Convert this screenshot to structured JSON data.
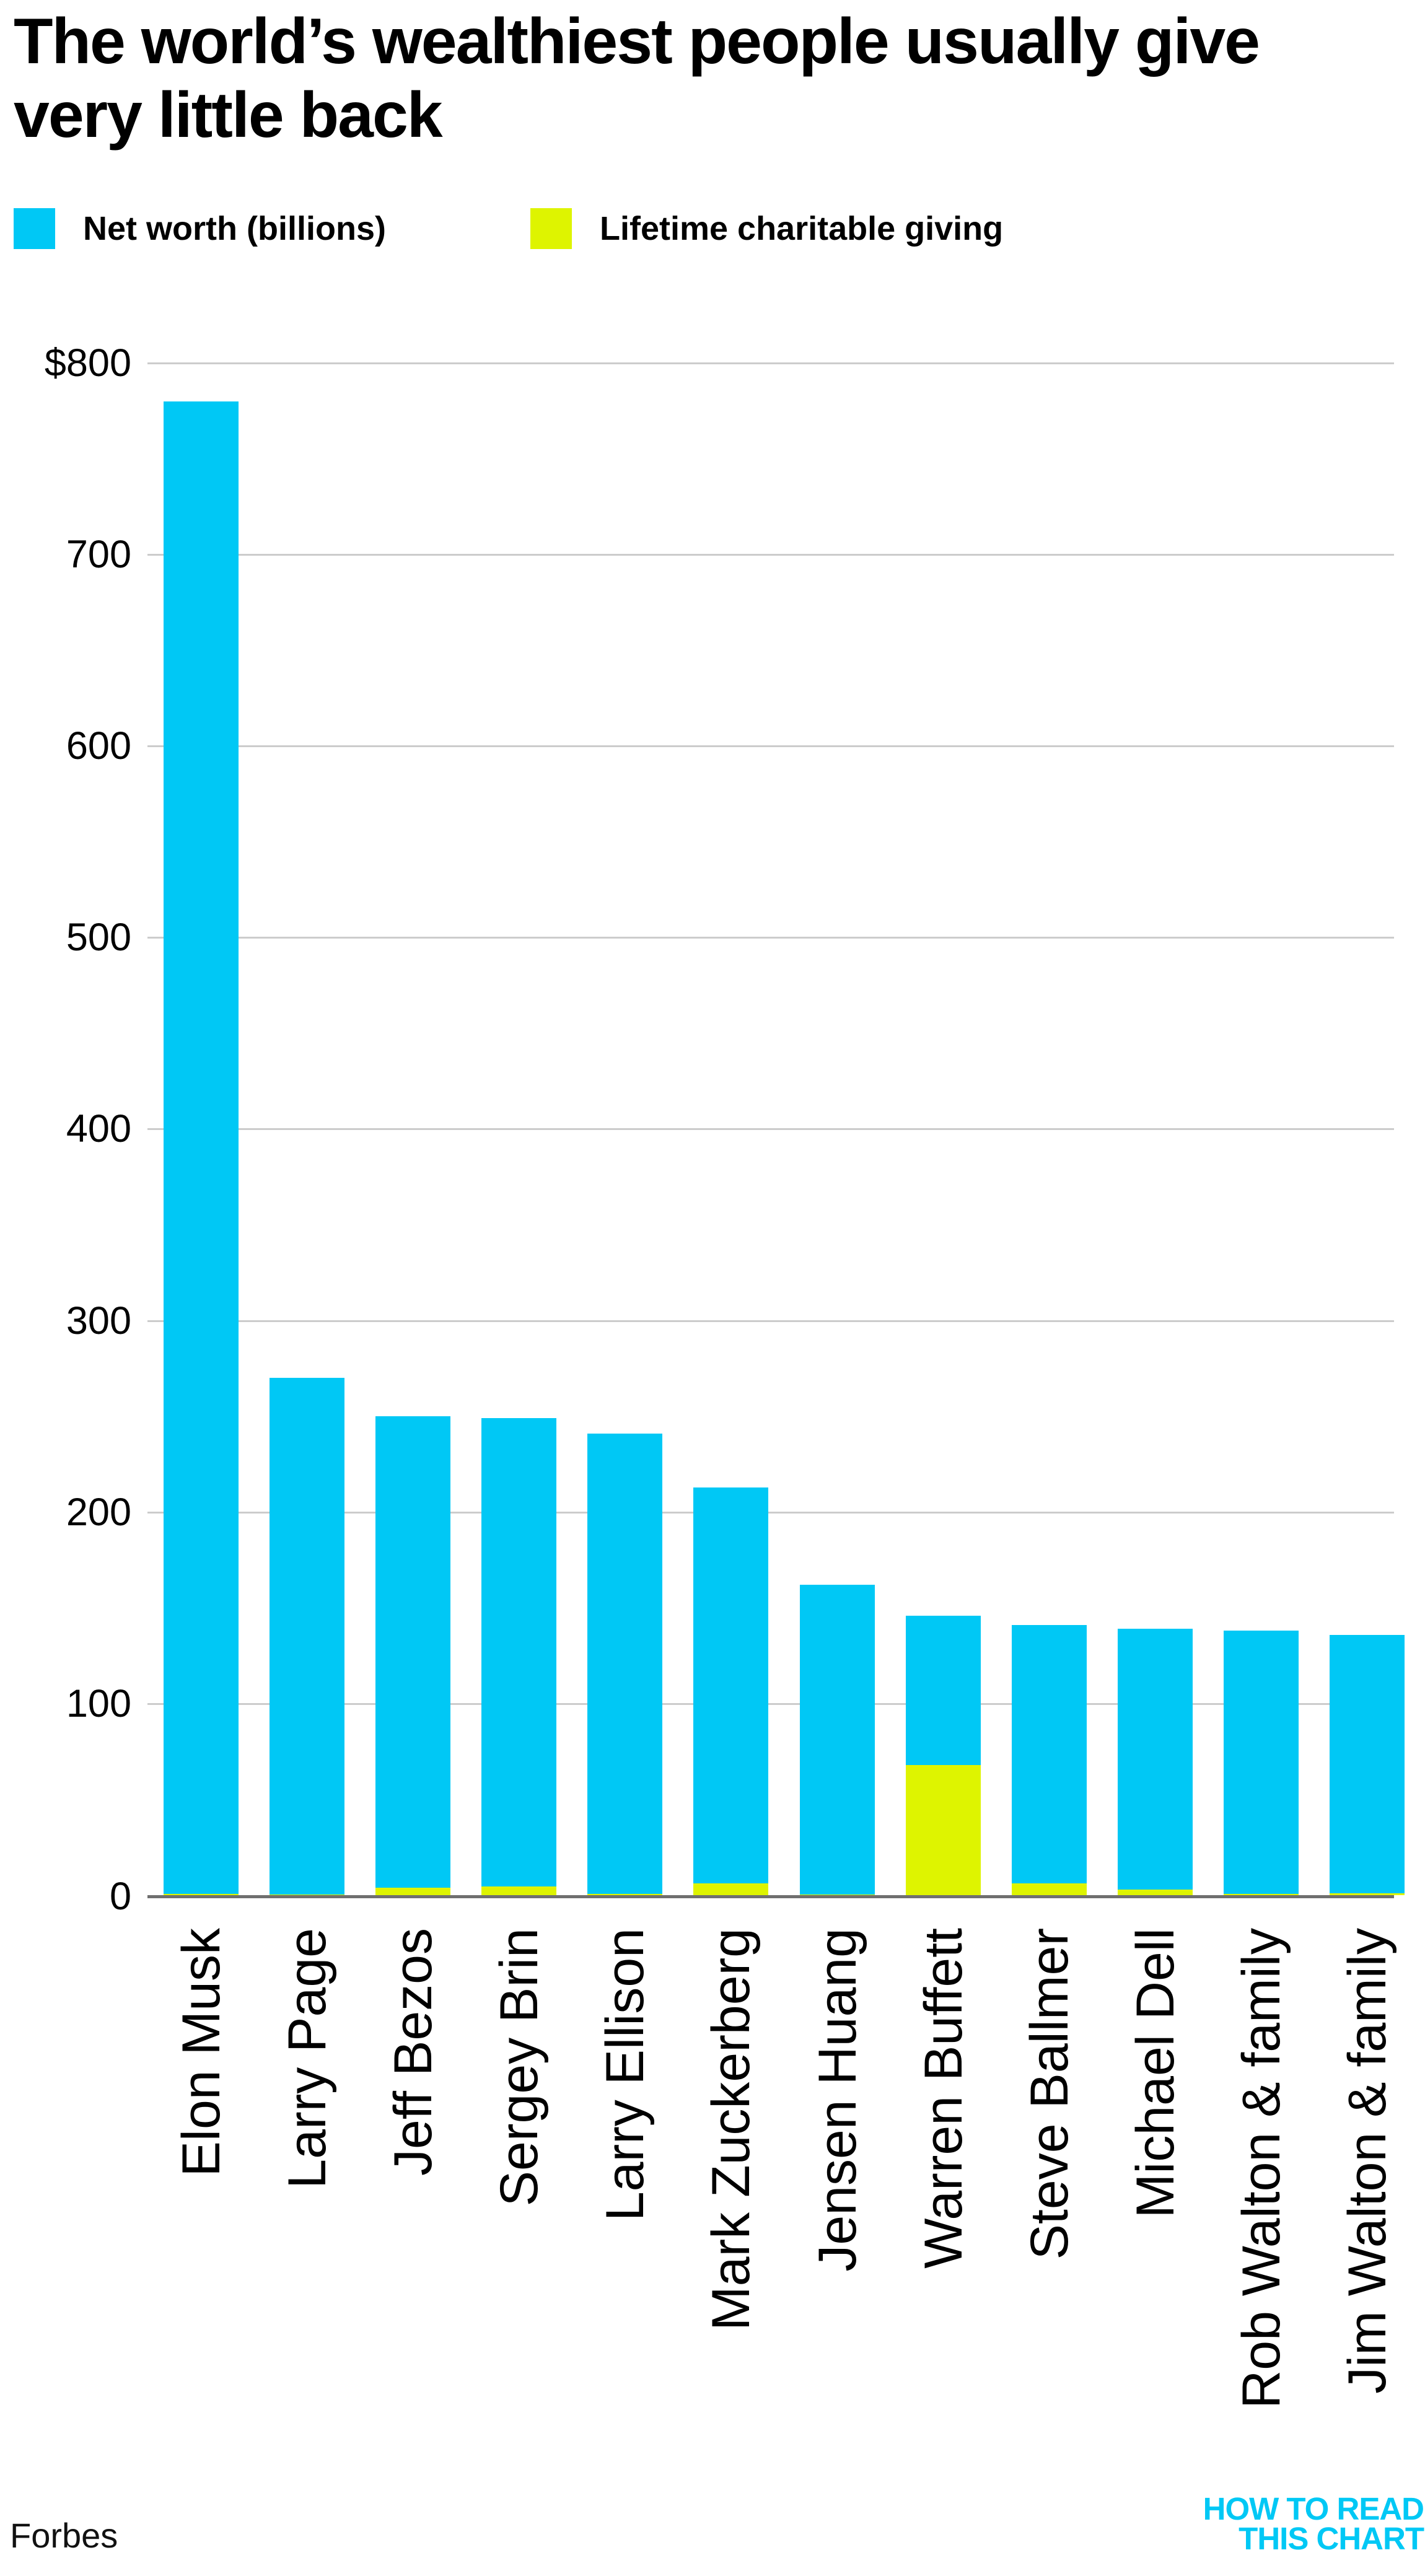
{
  "title": {
    "line1": "The world’s wealthiest people usually give",
    "line2": "very little back"
  },
  "legend": [
    {
      "label": "Net worth (billions)",
      "color": "#00c8f5"
    },
    {
      "label": "Lifetime charitable giving",
      "color": "#def400"
    }
  ],
  "source": "Forbes",
  "logo": {
    "line1": "HOW TO READ",
    "line2": "THIS CHART",
    "color": "#00c8f5"
  },
  "colors": {
    "net_worth": "#00c8f5",
    "giving": "#def400",
    "gridline": "#cccccc",
    "axis": "#6f6f6f",
    "text": "#000000"
  },
  "chart_data": {
    "type": "bar",
    "title": "The world’s wealthiest people usually give very little back",
    "categories": [
      "Elon Musk",
      "Larry Page",
      "Jeff Bezos",
      "Sergey Brin",
      "Larry Ellison",
      "Mark Zuckerberg",
      "Jensen Huang",
      "Warren Buffett",
      "Steve Ballmer",
      "Michael Dell",
      "Rob Walton & family",
      "Jim Walton & family"
    ],
    "series": [
      {
        "name": "Net worth (billions)",
        "color": "#00c8f5",
        "values": [
          780,
          270,
          250,
          249,
          241,
          213,
          162,
          146,
          141,
          139,
          138,
          136
        ]
      },
      {
        "name": "Lifetime charitable giving",
        "color": "#def400",
        "values": [
          0.5,
          0.4,
          4,
          4.5,
          0.5,
          6,
          0.3,
          68,
          6,
          3,
          0.5,
          1
        ]
      }
    ],
    "y_ticks": [
      {
        "label": "$800",
        "value": 800
      },
      {
        "label": "700",
        "value": 700
      },
      {
        "label": "600",
        "value": 600
      },
      {
        "label": "500",
        "value": 500
      },
      {
        "label": "400",
        "value": 400
      },
      {
        "label": "300",
        "value": 300
      },
      {
        "label": "200",
        "value": 200
      },
      {
        "label": "100",
        "value": 100
      },
      {
        "label": "0",
        "value": 0
      }
    ],
    "ylim": [
      0,
      800
    ],
    "grid": true,
    "legend_position": "top-left",
    "xlabel": "",
    "ylabel": "",
    "source": "Forbes"
  }
}
